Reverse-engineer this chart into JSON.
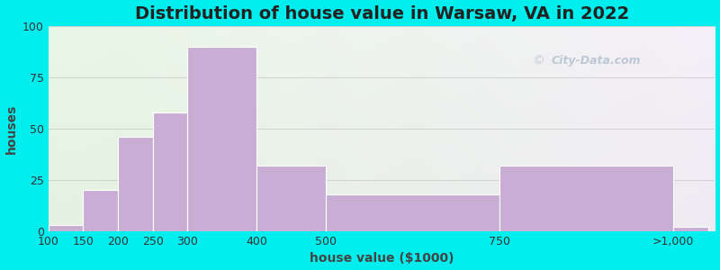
{
  "title": "Distribution of house value in Warsaw, VA in 2022",
  "xlabel": "house value ($1000)",
  "ylabel": "houses",
  "background_outer": "#00EEEE",
  "bar_color": "#c8aed4",
  "bar_edge_color": "#ffffff",
  "categories": [
    "100",
    "150",
    "200",
    "250",
    "300",
    "400",
    "500",
    "750",
    ">1,000"
  ],
  "values": [
    3,
    20,
    46,
    58,
    90,
    32,
    18,
    32,
    2
  ],
  "left_edges": [
    100,
    150,
    200,
    250,
    300,
    400,
    500,
    750,
    1000
  ],
  "bar_widths_real": [
    50,
    50,
    50,
    50,
    100,
    100,
    250,
    250,
    50
  ],
  "tick_positions": [
    100,
    150,
    200,
    250,
    300,
    400,
    500,
    750,
    1000
  ],
  "tick_labels": [
    "100",
    "150",
    "200",
    "250",
    "300",
    "400",
    "500",
    "750",
    ">1,000"
  ],
  "yticks": [
    0,
    25,
    50,
    75,
    100
  ],
  "ylim": [
    0,
    100
  ],
  "xlim": [
    100,
    1060
  ],
  "grid_color": "#cccccc",
  "title_fontsize": 14,
  "axis_label_fontsize": 10,
  "tick_fontsize": 9,
  "watermark_text": "City-Data.com"
}
